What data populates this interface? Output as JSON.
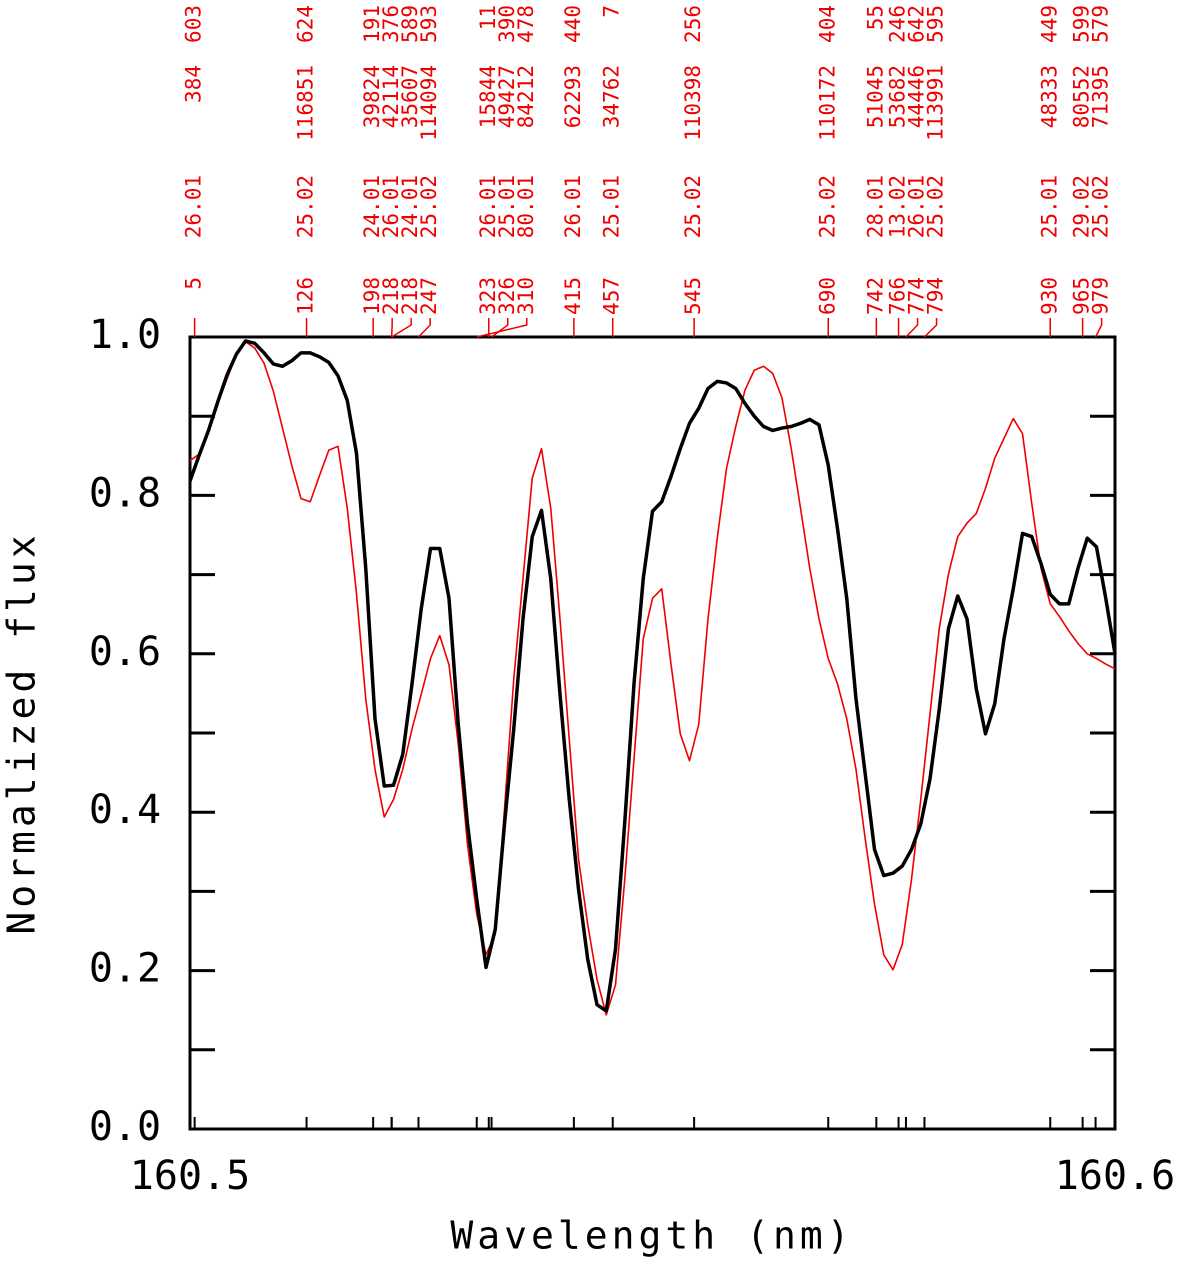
{
  "chart_data": {
    "type": "line",
    "xlabel": "Wavelength (nm)",
    "ylabel": "Normalized flux",
    "xlim": [
      160.5,
      160.6
    ],
    "ylim": [
      0,
      1.0
    ],
    "xticks": [
      160.5,
      160.6
    ],
    "yticks": [
      {
        "value": 0,
        "label": "0.0"
      },
      0.2,
      0.4,
      0.6,
      0.8,
      {
        "value": 1,
        "label": "1.0"
      }
    ],
    "yminorticks": [
      0.1,
      0.3,
      0.5,
      0.7,
      0.9
    ],
    "x": [
      160.5,
      160.501,
      160.502,
      160.503,
      160.504,
      160.505,
      160.506,
      160.507,
      160.508,
      160.509,
      160.51,
      160.511,
      160.512,
      160.513,
      160.514,
      160.515,
      160.516,
      160.517,
      160.518,
      160.519,
      160.52,
      160.521,
      160.522,
      160.523,
      160.524,
      160.525,
      160.526,
      160.527,
      160.528,
      160.529,
      160.53,
      160.531,
      160.532,
      160.533,
      160.534,
      160.535,
      160.536,
      160.537,
      160.538,
      160.539,
      160.54,
      160.541,
      160.542,
      160.543,
      160.544,
      160.545,
      160.546,
      160.547,
      160.548,
      160.549,
      160.55,
      160.551,
      160.552,
      160.553,
      160.554,
      160.555,
      160.556,
      160.557,
      160.558,
      160.559,
      160.56,
      160.561,
      160.562,
      160.563,
      160.564,
      160.565,
      160.566,
      160.567,
      160.568,
      160.569,
      160.57,
      160.571,
      160.572,
      160.573,
      160.574,
      160.575,
      160.576,
      160.577,
      160.578,
      160.579,
      160.58,
      160.581,
      160.582,
      160.583,
      160.584,
      160.585,
      160.586,
      160.587,
      160.588,
      160.589,
      160.59,
      160.591,
      160.592,
      160.593,
      160.594,
      160.595,
      160.596,
      160.597,
      160.598,
      160.599,
      160.6
    ],
    "series": [
      {
        "color": "#ee0000",
        "width": 1.6,
        "values": [
          0.844,
          0.852,
          0.884,
          0.916,
          0.947,
          0.978,
          0.994,
          0.986,
          0.967,
          0.932,
          0.885,
          0.838,
          0.796,
          0.792,
          0.825,
          0.857,
          0.862,
          0.784,
          0.676,
          0.543,
          0.454,
          0.394,
          0.416,
          0.454,
          0.505,
          0.549,
          0.594,
          0.623,
          0.586,
          0.486,
          0.359,
          0.271,
          0.22,
          0.246,
          0.404,
          0.568,
          0.695,
          0.822,
          0.859,
          0.784,
          0.644,
          0.492,
          0.341,
          0.258,
          0.189,
          0.144,
          0.182,
          0.315,
          0.467,
          0.619,
          0.67,
          0.682,
          0.587,
          0.499,
          0.465,
          0.511,
          0.644,
          0.746,
          0.834,
          0.887,
          0.933,
          0.958,
          0.963,
          0.954,
          0.923,
          0.859,
          0.784,
          0.708,
          0.644,
          0.594,
          0.562,
          0.518,
          0.454,
          0.366,
          0.284,
          0.22,
          0.201,
          0.233,
          0.315,
          0.416,
          0.524,
          0.632,
          0.701,
          0.748,
          0.765,
          0.777,
          0.809,
          0.847,
          0.872,
          0.897,
          0.878,
          0.79,
          0.708,
          0.663,
          0.647,
          0.629,
          0.613,
          0.6,
          0.594,
          0.587,
          0.581
        ]
      },
      {
        "color": "#000000",
        "width": 3.5,
        "values": [
          0.818,
          0.851,
          0.882,
          0.918,
          0.952,
          0.978,
          0.995,
          0.992,
          0.98,
          0.966,
          0.963,
          0.97,
          0.98,
          0.98,
          0.975,
          0.968,
          0.951,
          0.92,
          0.853,
          0.708,
          0.518,
          0.433,
          0.434,
          0.473,
          0.562,
          0.657,
          0.733,
          0.733,
          0.67,
          0.511,
          0.385,
          0.29,
          0.204,
          0.252,
          0.385,
          0.505,
          0.644,
          0.748,
          0.781,
          0.695,
          0.549,
          0.416,
          0.303,
          0.214,
          0.157,
          0.149,
          0.227,
          0.387,
          0.562,
          0.695,
          0.78,
          0.792,
          0.824,
          0.859,
          0.891,
          0.91,
          0.935,
          0.944,
          0.942,
          0.935,
          0.916,
          0.9,
          0.887,
          0.882,
          0.885,
          0.887,
          0.891,
          0.896,
          0.889,
          0.838,
          0.758,
          0.67,
          0.543,
          0.448,
          0.353,
          0.32,
          0.323,
          0.332,
          0.353,
          0.385,
          0.442,
          0.53,
          0.632,
          0.673,
          0.644,
          0.556,
          0.499,
          0.537,
          0.619,
          0.682,
          0.752,
          0.748,
          0.714,
          0.675,
          0.663,
          0.663,
          0.708,
          0.746,
          0.735,
          0.67,
          0.6
        ]
      }
    ],
    "line_ids": [
      {
        "offset": 5,
        "species": 26.01,
        "index": 384,
        "strength": 603,
        "wavelength": 160.5005
      },
      {
        "offset": 126,
        "species": 25.02,
        "index": 116851,
        "strength": 624,
        "wavelength": 160.5126
      },
      {
        "offset": 198,
        "species": 24.01,
        "index": 39824,
        "strength": 191,
        "wavelength": 160.5198
      },
      {
        "offset": 218,
        "species": 26.01,
        "index": 42114,
        "strength": 376,
        "wavelength": 160.5218
      },
      {
        "offset": 218,
        "species": 24.01,
        "index": 35607,
        "strength": 589,
        "wavelength": 160.5218
      },
      {
        "offset": 247,
        "species": 25.02,
        "index": 114094,
        "strength": 593,
        "wavelength": 160.5247
      },
      {
        "offset": 323,
        "species": 26.01,
        "index": 15844,
        "strength": 11,
        "wavelength": 160.5323
      },
      {
        "offset": 326,
        "species": 25.01,
        "index": 49427,
        "strength": 390,
        "wavelength": 160.5326
      },
      {
        "offset": 310,
        "species": 80.01,
        "index": 84212,
        "strength": 478,
        "wavelength": 160.531
      },
      {
        "offset": 415,
        "species": 26.01,
        "index": 62293,
        "strength": 440,
        "wavelength": 160.5415
      },
      {
        "offset": 457,
        "species": 25.01,
        "index": 34762,
        "strength": 7,
        "wavelength": 160.5457
      },
      {
        "offset": 545,
        "species": 25.02,
        "index": 110398,
        "strength": 256,
        "wavelength": 160.5545
      },
      {
        "offset": 690,
        "species": 25.02,
        "index": 110172,
        "strength": 404,
        "wavelength": 160.569
      },
      {
        "offset": 742,
        "species": 28.01,
        "index": 51045,
        "strength": 55,
        "wavelength": 160.5742
      },
      {
        "offset": 766,
        "species": 13.02,
        "index": 53682,
        "strength": 246,
        "wavelength": 160.5766
      },
      {
        "offset": 774,
        "species": 26.01,
        "index": 44446,
        "strength": 642,
        "wavelength": 160.5774
      },
      {
        "offset": 794,
        "species": 25.02,
        "index": 113991,
        "strength": 595,
        "wavelength": 160.5794
      },
      {
        "offset": 930,
        "species": 25.01,
        "index": 48333,
        "strength": 449,
        "wavelength": 160.593
      },
      {
        "offset": 965,
        "species": 29.02,
        "index": 80552,
        "strength": 599,
        "wavelength": 160.5965
      },
      {
        "offset": 979,
        "species": 25.02,
        "index": 71395,
        "strength": 579,
        "wavelength": 160.5979
      }
    ]
  }
}
